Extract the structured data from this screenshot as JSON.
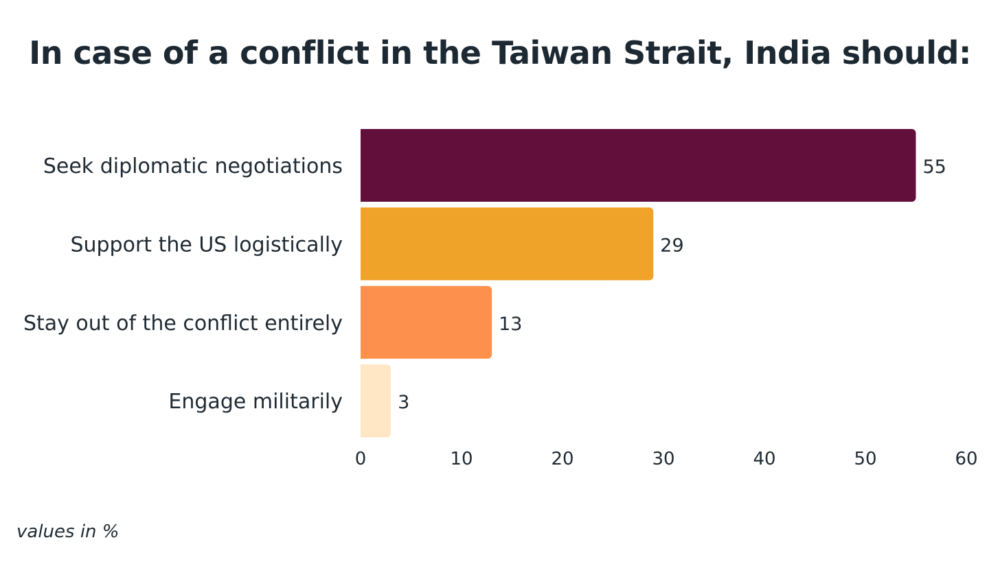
{
  "chart_data": {
    "type": "bar",
    "orientation": "horizontal",
    "title": "In case of a conflict in the Taiwan Strait, India should:",
    "categories": [
      "Seek diplomatic negotiations",
      "Support the US logistically",
      "Stay out of the conflict entirely",
      "Engage militarily"
    ],
    "values": [
      55,
      29,
      13,
      3
    ],
    "value_labels": [
      "55",
      "29",
      "13",
      "3"
    ],
    "colors": [
      "#630F3C",
      "#F0A329",
      "#FE904D",
      "#FFE6C4"
    ],
    "xlim": [
      0,
      60
    ],
    "xticks": [
      "0",
      "10",
      "20",
      "30",
      "40",
      "50",
      "60"
    ],
    "grid": false,
    "footnote": "values in %"
  }
}
